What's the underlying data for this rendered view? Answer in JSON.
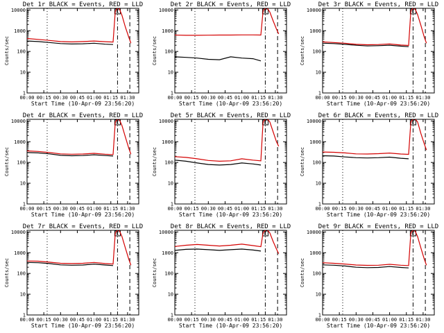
{
  "figure": {
    "title_template": "Det {det} BLACK = Events, RED = LLD",
    "xlabel": "Start Time (10-Apr-09 23:56:20)",
    "ylabel": "Counts/sec",
    "series_colors": {
      "events": "#000000",
      "lld": "#d40000"
    },
    "marker_label": "C"
  },
  "chart_data": [
    {
      "type": "line",
      "title": "Det 1r BLACK = Events, RED = LLD",
      "xlabel": "Start Time (10-Apr-09 23:56:20)",
      "ylabel": "Counts/sec",
      "yscale": "log",
      "ylim": [
        1,
        12000
      ],
      "xlim_minutes": [
        0,
        100
      ],
      "x_tick_labels": [
        "00:00",
        "00:15",
        "00:30",
        "00:45",
        "01:00",
        "01:15",
        "01:30"
      ],
      "y_tick_labels": [
        "1",
        "10",
        "100",
        "1000",
        "10000"
      ],
      "grid": false,
      "legend": "none",
      "x_minutes": [
        0,
        10,
        20,
        30,
        40,
        50,
        60,
        70,
        77,
        79,
        82,
        85,
        88,
        91,
        93
      ],
      "series": [
        {
          "name": "Events",
          "color": "#000000",
          "values": [
            320,
            300,
            270,
            240,
            230,
            235,
            250,
            225,
            215,
            null,
            null,
            null,
            null,
            null,
            null
          ]
        },
        {
          "name": "LLD",
          "color": "#d40000",
          "values": [
            420,
            380,
            340,
            300,
            290,
            300,
            320,
            295,
            285,
            9000,
            14000,
            5500,
            1500,
            500,
            250
          ]
        }
      ],
      "vlines_minutes": [
        {
          "x": 18,
          "style": "dotted"
        },
        {
          "x": 81,
          "style": "dash-dot"
        },
        {
          "x": 92,
          "style": "dashed"
        }
      ]
    },
    {
      "type": "line",
      "title": "Det 2r BLACK = Events, RED = LLD",
      "xlabel": "Start Time (10-Apr-09 23:56:20)",
      "ylabel": "Counts/sec",
      "yscale": "log",
      "ylim": [
        1,
        12000
      ],
      "xlim_minutes": [
        0,
        100
      ],
      "x_tick_labels": [
        "00:00",
        "00:15",
        "00:30",
        "00:45",
        "01:00",
        "01:15",
        "01:30"
      ],
      "y_tick_labels": [
        "1",
        "10",
        "100",
        "1000",
        "10000"
      ],
      "grid": false,
      "legend": "none",
      "x_minutes": [
        0,
        10,
        20,
        30,
        40,
        50,
        60,
        70,
        77,
        79,
        82,
        85,
        88,
        91,
        93
      ],
      "series": [
        {
          "name": "Events",
          "color": "#000000",
          "values": [
            55,
            52,
            48,
            42,
            40,
            55,
            48,
            45,
            35,
            null,
            null,
            null,
            null,
            null,
            null
          ]
        },
        {
          "name": "LLD",
          "color": "#d40000",
          "values": [
            620,
            600,
            600,
            610,
            620,
            620,
            630,
            630,
            620,
            9000,
            14000,
            8000,
            3000,
            1200,
            700
          ]
        }
      ],
      "vlines_minutes": [
        {
          "x": 18,
          "style": "dotted"
        },
        {
          "x": 81,
          "style": "dash-dot"
        },
        {
          "x": 92,
          "style": "dashed"
        }
      ]
    },
    {
      "type": "line",
      "title": "Det 3r BLACK = Events, RED = LLD",
      "xlabel": "Start Time (10-Apr-09 23:56:20)",
      "ylabel": "Counts/sec",
      "yscale": "log",
      "ylim": [
        1,
        12000
      ],
      "xlim_minutes": [
        0,
        100
      ],
      "x_tick_labels": [
        "00:00",
        "00:15",
        "00:30",
        "00:45",
        "01:00",
        "01:15",
        "01:30"
      ],
      "y_tick_labels": [
        "1",
        "10",
        "100",
        "1000",
        "10000"
      ],
      "grid": false,
      "legend": "none",
      "x_minutes": [
        0,
        10,
        20,
        30,
        40,
        50,
        60,
        70,
        77,
        79,
        82,
        85,
        88,
        91,
        93
      ],
      "series": [
        {
          "name": "Events",
          "color": "#000000",
          "values": [
            250,
            240,
            220,
            200,
            185,
            190,
            200,
            180,
            170,
            null,
            null,
            null,
            null,
            null,
            null
          ]
        },
        {
          "name": "LLD",
          "color": "#d40000",
          "values": [
            290,
            270,
            250,
            220,
            210,
            215,
            230,
            205,
            195,
            9000,
            14000,
            6000,
            1800,
            500,
            250
          ]
        }
      ],
      "vlines_minutes": [
        {
          "x": 18,
          "style": "dotted"
        },
        {
          "x": 81,
          "style": "dash-dot"
        },
        {
          "x": 92,
          "style": "dashed"
        }
      ]
    },
    {
      "type": "line",
      "title": "Det 4r BLACK = Events, RED = LLD",
      "xlabel": "Start Time (10-Apr-09 23:56:20)",
      "ylabel": "Counts/sec",
      "yscale": "log",
      "ylim": [
        1,
        12000
      ],
      "xlim_minutes": [
        0,
        100
      ],
      "x_tick_labels": [
        "00:00",
        "00:15",
        "00:30",
        "00:45",
        "01:00",
        "01:15",
        "01:30"
      ],
      "y_tick_labels": [
        "1",
        "10",
        "100",
        "1000",
        "10000"
      ],
      "grid": false,
      "legend": "none",
      "x_minutes": [
        0,
        10,
        20,
        30,
        40,
        50,
        60,
        70,
        77,
        79,
        82,
        85,
        88,
        91,
        93
      ],
      "series": [
        {
          "name": "Events",
          "color": "#000000",
          "values": [
            300,
            290,
            260,
            220,
            210,
            215,
            235,
            215,
            205,
            null,
            null,
            null,
            null,
            null,
            null
          ]
        },
        {
          "name": "LLD",
          "color": "#d40000",
          "values": [
            360,
            340,
            300,
            260,
            250,
            255,
            275,
            250,
            240,
            9000,
            14000,
            6000,
            1700,
            500,
            250
          ]
        }
      ],
      "vlines_minutes": [
        {
          "x": 18,
          "style": "dotted"
        },
        {
          "x": 81,
          "style": "dash-dot"
        },
        {
          "x": 92,
          "style": "dashed"
        }
      ]
    },
    {
      "type": "line",
      "title": "Det 5r BLACK = Events, RED = LLD",
      "xlabel": "Start Time (10-Apr-09 23:56:20)",
      "ylabel": "Counts/sec",
      "yscale": "log",
      "ylim": [
        1,
        12000
      ],
      "xlim_minutes": [
        0,
        100
      ],
      "x_tick_labels": [
        "00:00",
        "00:15",
        "00:30",
        "00:45",
        "01:00",
        "01:15",
        "01:30"
      ],
      "y_tick_labels": [
        "1",
        "10",
        "100",
        "1000",
        "10000"
      ],
      "grid": false,
      "legend": "none",
      "x_minutes": [
        0,
        10,
        20,
        30,
        40,
        50,
        60,
        70,
        77,
        79,
        82,
        85,
        88,
        91,
        93
      ],
      "series": [
        {
          "name": "Events",
          "color": "#000000",
          "values": [
            130,
            115,
            95,
            80,
            75,
            80,
            95,
            85,
            75,
            null,
            null,
            null,
            null,
            null,
            null
          ]
        },
        {
          "name": "LLD",
          "color": "#d40000",
          "values": [
            190,
            175,
            150,
            125,
            115,
            120,
            150,
            130,
            120,
            9000,
            14000,
            9000,
            3000,
            1000,
            600
          ]
        }
      ],
      "vlines_minutes": [
        {
          "x": 18,
          "style": "dotted"
        },
        {
          "x": 81,
          "style": "dash-dot"
        },
        {
          "x": 92,
          "style": "dashed"
        }
      ]
    },
    {
      "type": "line",
      "title": "Det 6r BLACK = Events, RED = LLD",
      "xlabel": "Start Time (10-Apr-09 23:56:20)",
      "ylabel": "Counts/sec",
      "yscale": "log",
      "ylim": [
        1,
        12000
      ],
      "xlim_minutes": [
        0,
        100
      ],
      "x_tick_labels": [
        "00:00",
        "00:15",
        "00:30",
        "00:45",
        "01:00",
        "01:15",
        "01:30"
      ],
      "y_tick_labels": [
        "1",
        "10",
        "100",
        "1000",
        "10000"
      ],
      "grid": false,
      "legend": "none",
      "x_minutes": [
        0,
        10,
        20,
        30,
        40,
        50,
        60,
        70,
        77,
        79,
        82,
        85,
        88,
        91,
        93
      ],
      "series": [
        {
          "name": "Events",
          "color": "#000000",
          "values": [
            210,
            205,
            185,
            170,
            165,
            170,
            180,
            160,
            150,
            null,
            null,
            null,
            null,
            null,
            null
          ]
        },
        {
          "name": "LLD",
          "color": "#d40000",
          "values": [
            320,
            310,
            290,
            260,
            255,
            265,
            285,
            255,
            245,
            9000,
            14000,
            9000,
            2500,
            800,
            400
          ]
        }
      ],
      "vlines_minutes": [
        {
          "x": 18,
          "style": "dotted"
        },
        {
          "x": 81,
          "style": "dash-dot"
        },
        {
          "x": 92,
          "style": "dashed"
        }
      ]
    },
    {
      "type": "line",
      "title": "Det 7r BLACK = Events, RED = LLD",
      "xlabel": "Start Time (10-Apr-09 23:56:20)",
      "ylabel": "Counts/sec",
      "yscale": "log",
      "ylim": [
        1,
        12000
      ],
      "xlim_minutes": [
        0,
        100
      ],
      "x_tick_labels": [
        "00:00",
        "00:15",
        "00:30",
        "00:45",
        "01:00",
        "01:15",
        "01:30"
      ],
      "y_tick_labels": [
        "1",
        "10",
        "100",
        "1000",
        "10000"
      ],
      "grid": false,
      "legend": "none",
      "x_minutes": [
        0,
        10,
        20,
        30,
        40,
        50,
        60,
        70,
        77,
        79,
        82,
        85,
        88,
        91,
        93
      ],
      "series": [
        {
          "name": "Events",
          "color": "#000000",
          "values": [
            340,
            330,
            300,
            260,
            250,
            255,
            285,
            255,
            240,
            null,
            null,
            null,
            null,
            null,
            null
          ]
        },
        {
          "name": "LLD",
          "color": "#d40000",
          "values": [
            400,
            390,
            350,
            310,
            300,
            310,
            340,
            300,
            285,
            9000,
            14000,
            6000,
            1700,
            500,
            250
          ]
        }
      ],
      "vlines_minutes": [
        {
          "x": 18,
          "style": "dotted"
        },
        {
          "x": 81,
          "style": "dash-dot"
        },
        {
          "x": 92,
          "style": "dashed"
        }
      ]
    },
    {
      "type": "line",
      "title": "Det 8r BLACK = Events, RED = LLD",
      "xlabel": "Start Time (10-Apr-09 23:56:20)",
      "ylabel": "Counts/sec",
      "yscale": "log",
      "ylim": [
        1,
        12000
      ],
      "xlim_minutes": [
        0,
        100
      ],
      "x_tick_labels": [
        "00:00",
        "00:15",
        "00:30",
        "00:45",
        "01:00",
        "01:15",
        "01:30"
      ],
      "y_tick_labels": [
        "1",
        "10",
        "100",
        "1000",
        "10000"
      ],
      "grid": false,
      "legend": "none",
      "x_minutes": [
        0,
        10,
        20,
        30,
        40,
        50,
        60,
        70,
        77,
        79,
        82,
        85,
        88,
        91,
        93
      ],
      "series": [
        {
          "name": "Events",
          "color": "#000000",
          "values": [
            1300,
            1450,
            1500,
            1400,
            1300,
            1400,
            1500,
            1350,
            1200,
            null,
            null,
            null,
            null,
            null,
            null
          ]
        },
        {
          "name": "LLD",
          "color": "#d40000",
          "values": [
            2000,
            2300,
            2500,
            2300,
            2100,
            2300,
            2600,
            2200,
            1950,
            9000,
            14000,
            9000,
            3500,
            1500,
            900
          ]
        }
      ],
      "vlines_minutes": [
        {
          "x": 18,
          "style": "dotted"
        },
        {
          "x": 81,
          "style": "dash-dot"
        },
        {
          "x": 92,
          "style": "dashed"
        }
      ]
    },
    {
      "type": "line",
      "title": "Det 9r BLACK = Events, RED = LLD",
      "xlabel": "Start Time (10-Apr-09 23:56:20)",
      "ylabel": "Counts/sec",
      "yscale": "log",
      "ylim": [
        1,
        12000
      ],
      "xlim_minutes": [
        0,
        100
      ],
      "x_tick_labels": [
        "00:00",
        "00:15",
        "00:30",
        "00:45",
        "01:00",
        "01:15",
        "01:30"
      ],
      "y_tick_labels": [
        "1",
        "10",
        "100",
        "1000",
        "10000"
      ],
      "grid": false,
      "legend": "none",
      "x_minutes": [
        0,
        10,
        20,
        30,
        40,
        50,
        60,
        70,
        77,
        79,
        82,
        85,
        88,
        91,
        93
      ],
      "series": [
        {
          "name": "Events",
          "color": "#000000",
          "values": [
            260,
            250,
            230,
            200,
            190,
            195,
            215,
            195,
            185,
            null,
            null,
            null,
            null,
            null,
            null
          ]
        },
        {
          "name": "LLD",
          "color": "#d40000",
          "values": [
            330,
            310,
            285,
            255,
            245,
            250,
            275,
            250,
            240,
            9000,
            14000,
            6000,
            1700,
            500,
            250
          ]
        }
      ],
      "vlines_minutes": [
        {
          "x": 18,
          "style": "dotted"
        },
        {
          "x": 81,
          "style": "dash-dot"
        },
        {
          "x": 92,
          "style": "dashed"
        }
      ]
    }
  ]
}
